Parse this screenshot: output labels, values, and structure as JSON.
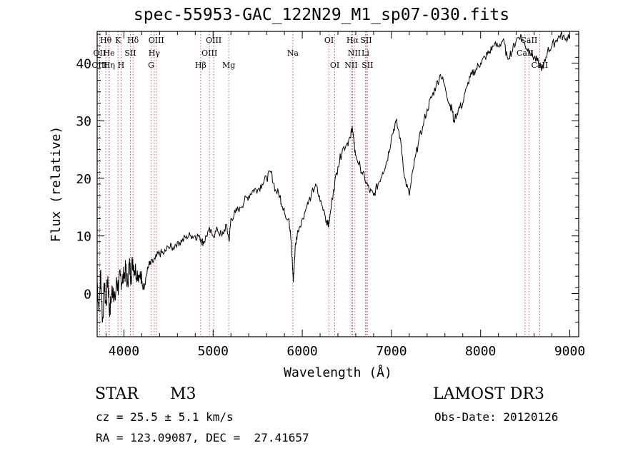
{
  "chart_data": {
    "type": "line",
    "title": "spec-55953-GAC_122N29_M1_sp07-030.fits",
    "xlabel": "Wavelength (Å)",
    "ylabel": "Flux (relative)",
    "xlim": [
      3700,
      9100
    ],
    "ylim": [
      -7.5,
      45.5
    ],
    "xticks": [
      4000,
      5000,
      6000,
      7000,
      8000,
      9000
    ],
    "yticks": [
      0,
      10,
      20,
      30,
      40
    ],
    "series": [
      {
        "name": "flux",
        "x": [
          3700,
          3720,
          3740,
          3760,
          3780,
          3800,
          3820,
          3840,
          3860,
          3880,
          3900,
          3920,
          3940,
          3960,
          3980,
          4000,
          4020,
          4040,
          4060,
          4080,
          4100,
          4120,
          4150,
          4180,
          4200,
          4220,
          4250,
          4280,
          4300,
          4350,
          4400,
          4450,
          4500,
          4550,
          4600,
          4650,
          4700,
          4750,
          4800,
          4850,
          4870,
          4900,
          4950,
          5000,
          5050,
          5100,
          5150,
          5180,
          5200,
          5250,
          5300,
          5350,
          5400,
          5450,
          5500,
          5550,
          5600,
          5650,
          5700,
          5750,
          5780,
          5800,
          5850,
          5870,
          5890,
          5900,
          5920,
          5950,
          6000,
          6050,
          6100,
          6150,
          6200,
          6250,
          6280,
          6300,
          6350,
          6400,
          6450,
          6500,
          6540,
          6560,
          6580,
          6600,
          6650,
          6700,
          6750,
          6800,
          6850,
          6900,
          6950,
          7000,
          7050,
          7100,
          7150,
          7200,
          7250,
          7300,
          7350,
          7400,
          7450,
          7500,
          7550,
          7600,
          7650,
          7680,
          7700,
          7750,
          7800,
          7850,
          7900,
          7950,
          8000,
          8050,
          8100,
          8150,
          8200,
          8250,
          8300,
          8350,
          8400,
          8450,
          8500,
          8550,
          8600,
          8650,
          8700,
          8750,
          8800,
          8850,
          8900,
          8950,
          9000
        ],
        "y": [
          2,
          -3,
          4,
          -5,
          1,
          -2,
          3,
          -4,
          0,
          1,
          -1,
          2,
          1,
          3,
          2,
          3,
          4,
          2,
          5,
          3,
          6,
          4,
          4,
          3,
          2,
          1,
          3,
          5,
          5,
          6,
          7,
          7,
          8,
          8,
          9,
          9,
          10,
          10,
          10,
          10,
          9,
          9,
          11,
          10,
          11,
          10,
          12,
          9,
          13,
          14,
          15,
          16,
          17,
          18,
          18,
          19,
          20,
          21,
          18,
          17,
          15,
          14,
          13,
          10,
          5,
          2,
          8,
          11,
          13,
          15,
          17,
          19,
          16,
          14,
          12,
          12,
          18,
          22,
          25,
          26,
          27,
          29,
          26,
          24,
          22,
          20,
          18,
          17,
          19,
          21,
          23,
          27,
          30,
          27,
          20,
          17,
          22,
          26,
          29,
          32,
          34,
          36,
          38,
          36,
          33,
          32,
          30,
          32,
          33,
          36,
          38,
          39,
          40,
          41,
          42,
          43,
          43,
          44,
          41,
          42,
          44,
          45,
          43,
          42,
          41,
          40,
          39,
          42,
          43,
          44,
          45,
          44,
          45
        ]
      }
    ],
    "lines": [
      {
        "name": "OII",
        "wl": 3727,
        "row": 1
      },
      {
        "name": "OIII",
        "wl": 3727,
        "row": 2
      },
      {
        "name": "Hθ",
        "wl": 3797,
        "row": 0
      },
      {
        "name": "He",
        "wl": 3833,
        "row": 1
      },
      {
        "name": "Hη",
        "wl": 3835,
        "row": 2
      },
      {
        "name": "K",
        "wl": 3934,
        "row": 0
      },
      {
        "name": "SII",
        "wl": 4072,
        "row": 1
      },
      {
        "name": "H",
        "wl": 3968,
        "row": 2
      },
      {
        "name": "Hδ",
        "wl": 4102,
        "row": 0
      },
      {
        "name": "OIII",
        "wl": 4363,
        "row": 0
      },
      {
        "name": "Hγ",
        "wl": 4340,
        "row": 1
      },
      {
        "name": "G",
        "wl": 4305,
        "row": 2
      },
      {
        "name": "Hβ",
        "wl": 4861,
        "row": 2
      },
      {
        "name": "OIII",
        "wl": 5007,
        "row": 0
      },
      {
        "name": "OIII",
        "wl": 4959,
        "row": 1
      },
      {
        "name": "Mg",
        "wl": 5175,
        "row": 2
      },
      {
        "name": "Na",
        "wl": 5894,
        "row": 1
      },
      {
        "name": "OI",
        "wl": 6300,
        "row": 0
      },
      {
        "name": "OI",
        "wl": 6364,
        "row": 2
      },
      {
        "name": "Hα",
        "wl": 6563,
        "row": 0
      },
      {
        "name": "SII",
        "wl": 6716,
        "row": 0
      },
      {
        "name": "NII",
        "wl": 6584,
        "row": 1
      },
      {
        "name": "Li",
        "wl": 6708,
        "row": 1
      },
      {
        "name": "NII",
        "wl": 6548,
        "row": 2
      },
      {
        "name": "SII",
        "wl": 6731,
        "row": 2
      },
      {
        "name": "CaII",
        "wl": 8542,
        "row": 0
      },
      {
        "name": "CaII",
        "wl": 8498,
        "row": 1
      },
      {
        "name": "CaII",
        "wl": 8662,
        "row": 2
      }
    ]
  },
  "info": {
    "object_class": "STAR",
    "subclass": "M3",
    "survey": "LAMOST DR3",
    "cz": "cz = 25.5 ± 5.1 km/s",
    "obs_date": "Obs-Date: 20120126",
    "coords": "RA = 123.09087, DEC =  27.41657"
  },
  "colors": {
    "line_marker": "#b03030",
    "spectrum": "#000000"
  }
}
